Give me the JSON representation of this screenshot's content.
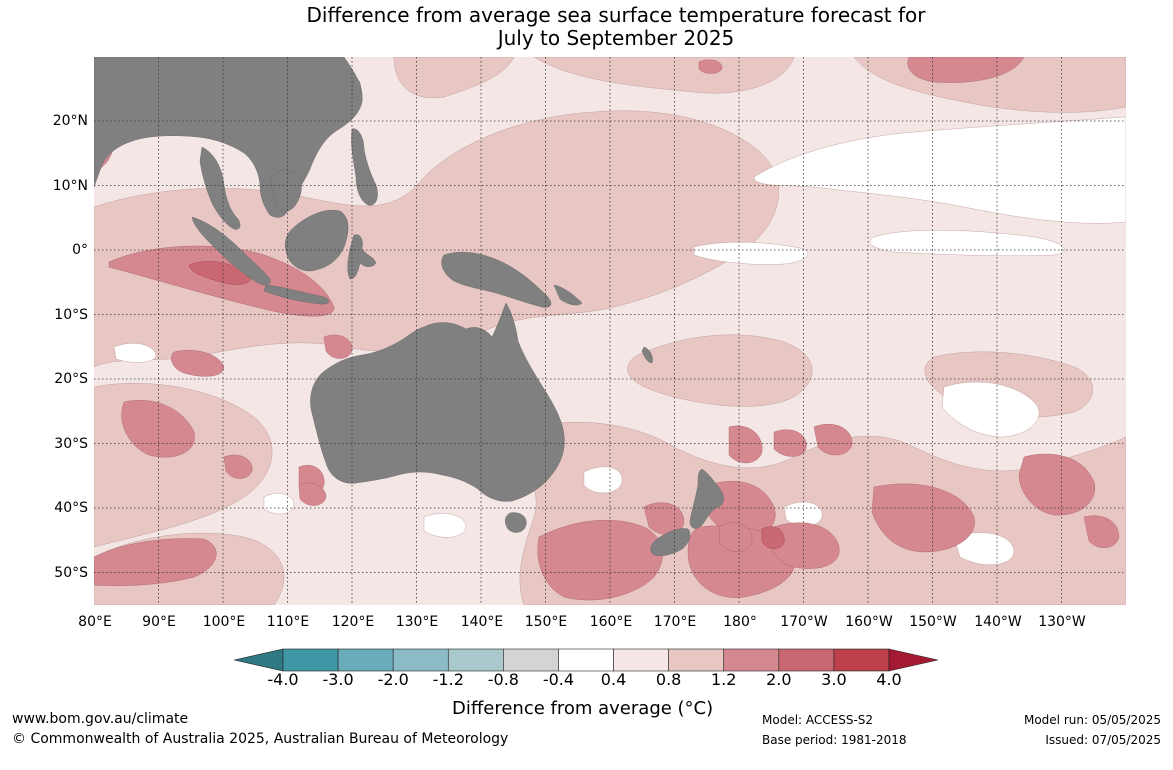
{
  "title": {
    "line1": "Difference from average sea surface temperature forecast for",
    "line2": "July to September 2025"
  },
  "map": {
    "land_color": "#808080",
    "ocean_base_color": "#f3e6e5",
    "latitude_labels": [
      "20°N",
      "10°N",
      "0°",
      "10°S",
      "20°S",
      "30°S",
      "40°S",
      "50°S"
    ],
    "longitude_labels": [
      "80°E",
      "90°E",
      "100°E",
      "110°E",
      "120°E",
      "130°E",
      "140°E",
      "150°E",
      "160°E",
      "170°E",
      "180°",
      "170°W",
      "160°W",
      "150°W",
      "140°W",
      "130°W"
    ],
    "lat_range": [
      -55,
      30
    ],
    "lon_range": [
      80,
      240
    ],
    "grid": "dotted"
  },
  "colorbar": {
    "boundaries": [
      "-4.0",
      "-3.0",
      "-2.0",
      "-1.2",
      "-0.8",
      "-0.4",
      "0.4",
      "0.8",
      "1.2",
      "2.0",
      "3.0",
      "4.0"
    ],
    "colors": [
      "#3f97a6",
      "#6aacb9",
      "#8bbcc6",
      "#a9c9cc",
      "#d3d4d4",
      "#ffffff",
      "#f4e7e6",
      "#e7c6c3",
      "#d5888f",
      "#c96773",
      "#bb404c"
    ],
    "extend_low_color": "#2f7a82",
    "extend_high_color": "#a41a33",
    "title": "Difference from average (°C)"
  },
  "footer": {
    "website": "www.bom.gov.au/climate",
    "copyright": "© Commonwealth of Australia 2025, Australian Bureau of Meteorology",
    "model": "Model: ACCESS-S2",
    "base_period": "Base period: 1981-2018",
    "model_run": "Model run: 05/05/2025",
    "issued": "Issued: 07/05/2025"
  }
}
